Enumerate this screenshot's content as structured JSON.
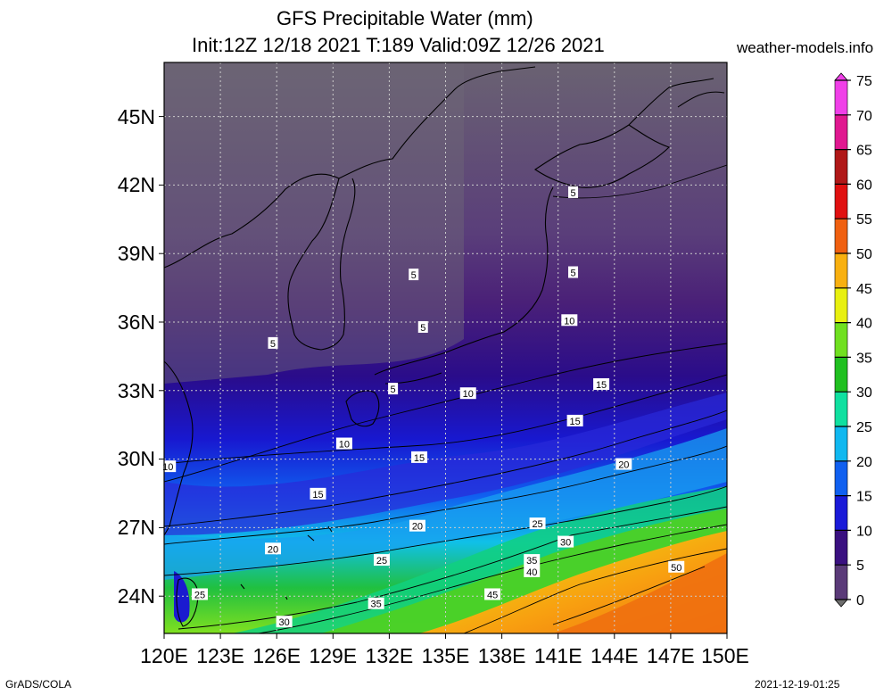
{
  "header": {
    "title": "GFS Precipitable Water (mm)",
    "subtitle": "Init:12Z 12/18 2021 T:189 Valid:09Z 12/26 2021",
    "site": "weather-models.info"
  },
  "footer": {
    "left": "GrADS/COLA",
    "right": "2021-12-19-01:25"
  },
  "map": {
    "lon_labels": [
      "120E",
      "123E",
      "126E",
      "129E",
      "132E",
      "135E",
      "138E",
      "141E",
      "144E",
      "147E",
      "150E"
    ],
    "lat_labels": [
      "24N",
      "27N",
      "30N",
      "33N",
      "36N",
      "39N",
      "42N",
      "45N"
    ],
    "lon_range": [
      120,
      150
    ],
    "lat_range": [
      22.5,
      47.5
    ],
    "grid": true
  },
  "colorbar": {
    "unit": "mm",
    "ticks": [
      "0",
      "5",
      "10",
      "15",
      "20",
      "25",
      "30",
      "35",
      "40",
      "45",
      "50",
      "55",
      "60",
      "65",
      "70",
      "75"
    ],
    "colors": [
      "#6e6e6e",
      "#5a3a78",
      "#3a1080",
      "#1a1ad8",
      "#1060f0",
      "#10b8f0",
      "#10e0a0",
      "#20c020",
      "#70e020",
      "#e8f010",
      "#f8b010",
      "#f06010",
      "#e01010",
      "#b01818",
      "#e01890",
      "#f040e8"
    ]
  },
  "contour_labels": [
    {
      "text": "5",
      "lon": 141.8,
      "lat": 41.8
    },
    {
      "text": "5",
      "lon": 141.8,
      "lat": 38.3
    },
    {
      "text": "5",
      "lon": 133.3,
      "lat": 38.2
    },
    {
      "text": "5",
      "lon": 133.8,
      "lat": 35.9
    },
    {
      "text": "5",
      "lon": 132.2,
      "lat": 33.2
    },
    {
      "text": "5",
      "lon": 125.8,
      "lat": 35.2
    },
    {
      "text": "10",
      "lon": 141.6,
      "lat": 36.2
    },
    {
      "text": "10",
      "lon": 136.2,
      "lat": 33.0
    },
    {
      "text": "10",
      "lon": 129.6,
      "lat": 30.8
    },
    {
      "text": "10",
      "lon": 120.2,
      "lat": 29.8
    },
    {
      "text": "15",
      "lon": 143.3,
      "lat": 33.4
    },
    {
      "text": "15",
      "lon": 141.9,
      "lat": 31.8
    },
    {
      "text": "15",
      "lon": 133.6,
      "lat": 30.2
    },
    {
      "text": "15",
      "lon": 128.2,
      "lat": 28.6
    },
    {
      "text": "20",
      "lon": 144.5,
      "lat": 29.9
    },
    {
      "text": "20",
      "lon": 133.5,
      "lat": 27.2
    },
    {
      "text": "20",
      "lon": 125.8,
      "lat": 26.2
    },
    {
      "text": "25",
      "lon": 139.9,
      "lat": 27.3
    },
    {
      "text": "25",
      "lon": 131.6,
      "lat": 25.7
    },
    {
      "text": "25",
      "lon": 121.9,
      "lat": 24.2
    },
    {
      "text": "30",
      "lon": 141.4,
      "lat": 26.5
    },
    {
      "text": "30",
      "lon": 126.4,
      "lat": 23.0
    },
    {
      "text": "35",
      "lon": 139.6,
      "lat": 25.7
    },
    {
      "text": "35",
      "lon": 131.3,
      "lat": 23.8
    },
    {
      "text": "40",
      "lon": 139.6,
      "lat": 25.2
    },
    {
      "text": "45",
      "lon": 137.5,
      "lat": 24.2
    },
    {
      "text": "50",
      "lon": 147.3,
      "lat": 25.4
    }
  ]
}
